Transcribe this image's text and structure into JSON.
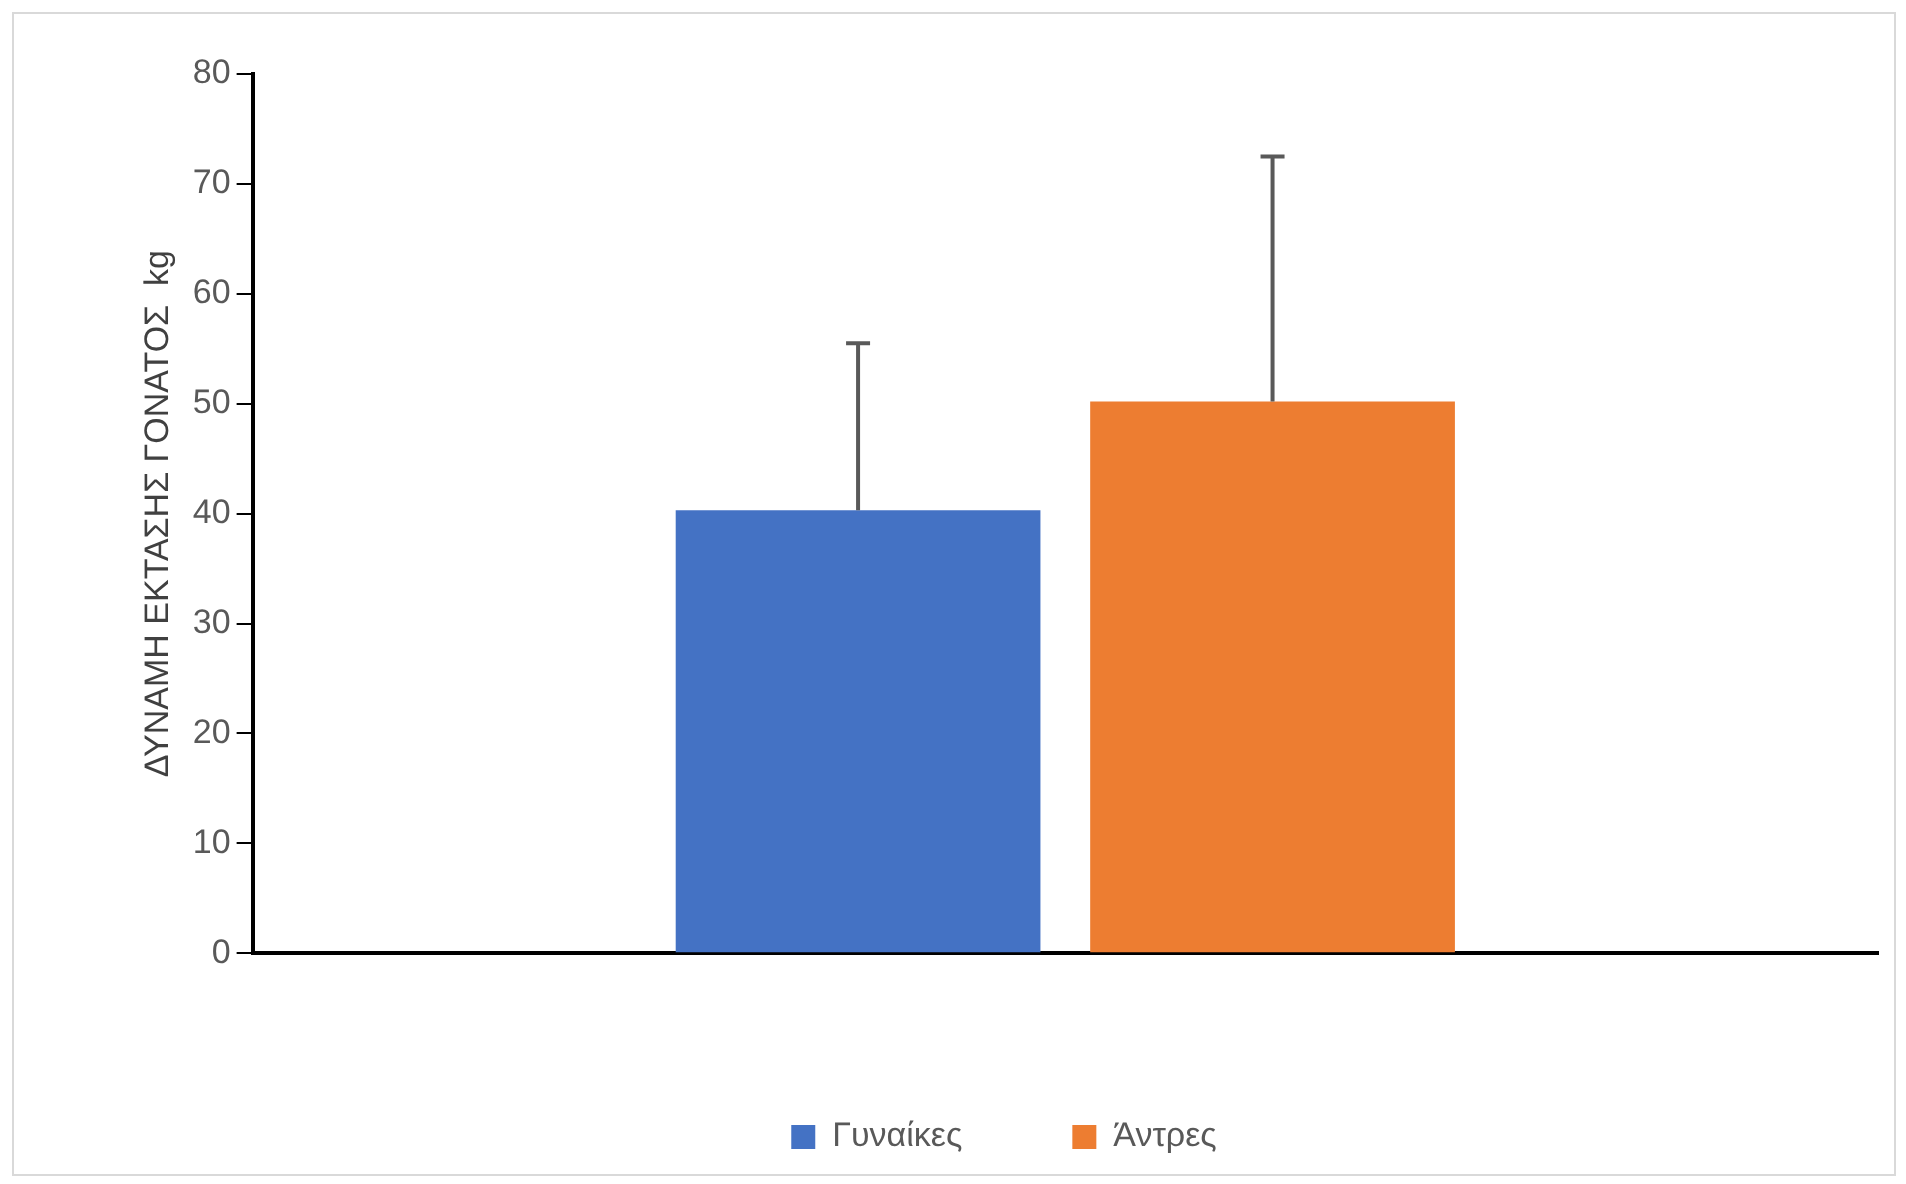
{
  "chart_data": {
    "type": "bar",
    "ylabel": "ΔΥΝΑΜΗ ΕΚΤΑΣΗΣ ΓΟΝΑΤΟΣ  kg",
    "categories": [
      null
    ],
    "series": [
      {
        "name": "Γυναίκες",
        "color": "#4472c4",
        "values": [
          40.3
        ],
        "errors": [
          [
            40.3,
            55.5
          ]
        ]
      },
      {
        "name": "Άντρες",
        "color": "#ed7d31",
        "values": [
          50.2
        ],
        "errors": [
          [
            50.2,
            72.5
          ]
        ]
      }
    ],
    "ylim": [
      0,
      80
    ],
    "yticks": [
      0,
      10,
      20,
      30,
      40,
      50,
      60,
      70,
      80
    ],
    "grid": false,
    "legend": "bottom"
  }
}
